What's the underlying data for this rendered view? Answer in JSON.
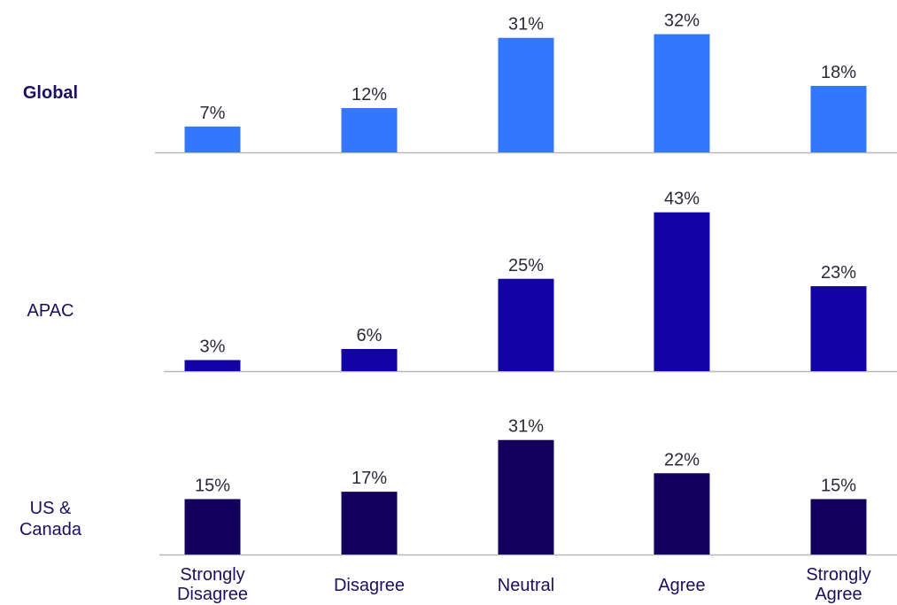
{
  "chart_data": {
    "type": "bar",
    "categories": [
      [
        "Strongly",
        "Disagree"
      ],
      [
        "Disagree"
      ],
      [
        "Neutral"
      ],
      [
        "Agree"
      ],
      [
        "Strongly",
        "Agree"
      ]
    ],
    "panels": [
      {
        "name": "Global",
        "name_lines": [
          "Global"
        ],
        "bold": true,
        "color": "#3377ff",
        "values": [
          7,
          12,
          31,
          32,
          18
        ],
        "labels": [
          "7%",
          "12%",
          "31%",
          "32%",
          "18%"
        ]
      },
      {
        "name": "APAC",
        "name_lines": [
          "APAC"
        ],
        "bold": false,
        "color": "#1203a6",
        "values": [
          3,
          6,
          25,
          43,
          23
        ],
        "labels": [
          "3%",
          "6%",
          "25%",
          "43%",
          "23%"
        ]
      },
      {
        "name": "US & Canada",
        "name_lines": [
          "US &",
          "Canada"
        ],
        "bold": false,
        "color": "#13005c",
        "values": [
          15,
          17,
          31,
          22,
          15
        ],
        "labels": [
          "15%",
          "17%",
          "31%",
          "22%",
          "15%"
        ]
      }
    ],
    "title": "",
    "xlabel": "",
    "ylabel": "",
    "grid": false,
    "legend": "none"
  }
}
